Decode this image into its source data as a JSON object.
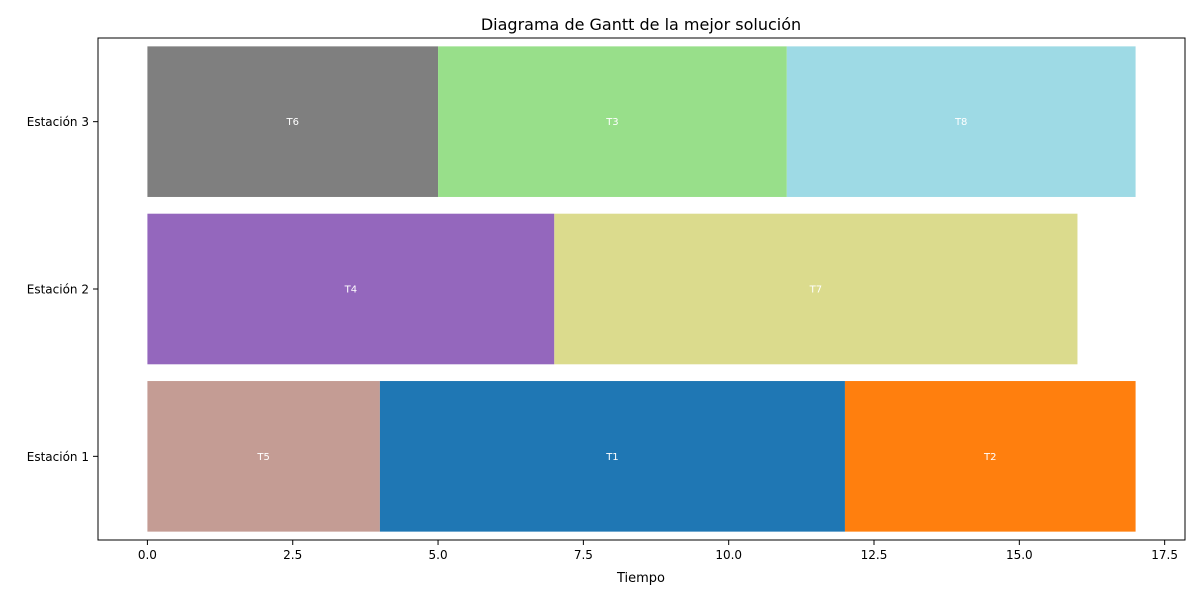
{
  "chart_data": {
    "type": "bar",
    "orientation": "horizontal",
    "title": "Diagrama de Gantt de la mejor solución",
    "xlabel": "Tiempo",
    "ylabel": "",
    "xlim": [
      -0.85,
      17.85
    ],
    "x_ticks": [
      0.0,
      2.5,
      5.0,
      7.5,
      10.0,
      12.5,
      15.0,
      17.5
    ],
    "x_tick_labels": [
      "0.0",
      "2.5",
      "5.0",
      "7.5",
      "10.0",
      "12.5",
      "15.0",
      "17.5"
    ],
    "categories": [
      "Estación 1",
      "Estación 2",
      "Estación 3"
    ],
    "grid": false,
    "legend": "none",
    "tasks": [
      {
        "label": "T5",
        "station": 0,
        "start": 0,
        "end": 4,
        "color": "#c49c94"
      },
      {
        "label": "T1",
        "station": 0,
        "start": 4,
        "end": 12,
        "color": "#1f77b4"
      },
      {
        "label": "T2",
        "station": 0,
        "start": 12,
        "end": 17,
        "color": "#ff7f0e"
      },
      {
        "label": "T4",
        "station": 1,
        "start": 0,
        "end": 7,
        "color": "#9467bd"
      },
      {
        "label": "T7",
        "station": 1,
        "start": 7,
        "end": 16,
        "color": "#dbdb8d"
      },
      {
        "label": "T6",
        "station": 2,
        "start": 0,
        "end": 5,
        "color": "#7f7f7f"
      },
      {
        "label": "T3",
        "station": 2,
        "start": 5,
        "end": 11,
        "color": "#98df8a"
      },
      {
        "label": "T8",
        "station": 2,
        "start": 11,
        "end": 17,
        "color": "#9edae5"
      }
    ]
  }
}
